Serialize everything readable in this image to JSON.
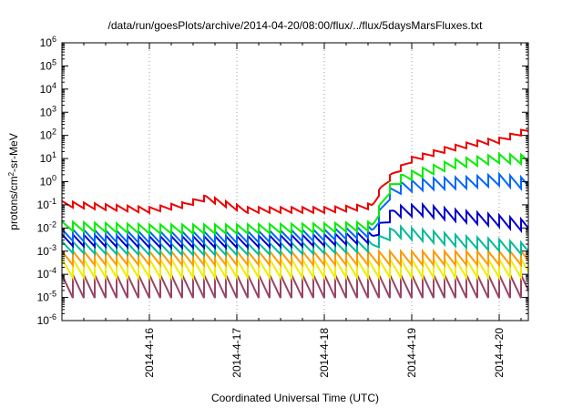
{
  "chart_data": {
    "type": "line",
    "title": "/data/run/goesPlots/archive/2014-04-20/08:00/flux/../flux/5daysMarsFluxes.txt",
    "xlabel": "Coordinated Universal Time (UTC)",
    "ylabel": {
      "base": "protons/cm",
      "sup": "2",
      "rest": "-sr-MeV"
    },
    "yscale": "log",
    "ylim_exp": [
      -6,
      6
    ],
    "xlim": [
      "2014-04-15 00:00",
      "2014-04-20 08:00"
    ],
    "x_ticks": [
      "2014-4-16",
      "2014-4-17",
      "2014-4-18",
      "2014-4-19",
      "2014-4-20"
    ],
    "y_ticks": [
      {
        "base": "10",
        "exp": "-6"
      },
      {
        "base": "10",
        "exp": "-5"
      },
      {
        "base": "10",
        "exp": "-4"
      },
      {
        "base": "10",
        "exp": "-3"
      },
      {
        "base": "10",
        "exp": "-2"
      },
      {
        "base": "10",
        "exp": "-1"
      },
      {
        "base": "10",
        "exp": "0"
      },
      {
        "base": "10",
        "exp": "1"
      },
      {
        "base": "10",
        "exp": "2"
      },
      {
        "base": "10",
        "exp": "3"
      },
      {
        "base": "10",
        "exp": "4"
      },
      {
        "base": "10",
        "exp": "5"
      },
      {
        "base": "10",
        "exp": "6"
      }
    ],
    "grid": true,
    "legend": "none",
    "sawtooth_period_days": 0.125,
    "series": [
      {
        "color": "#ee0000",
        "amplitude_decades": 0.25,
        "points": [
          [
            0.0,
            0.11
          ],
          [
            0.5,
            0.08
          ],
          [
            1.0,
            0.06
          ],
          [
            1.4,
            0.1
          ],
          [
            1.65,
            0.2
          ],
          [
            1.9,
            0.1
          ],
          [
            2.1,
            0.06
          ],
          [
            2.5,
            0.06
          ],
          [
            3.0,
            0.06
          ],
          [
            3.3,
            0.07
          ],
          [
            3.55,
            0.09
          ],
          [
            3.65,
            0.5
          ],
          [
            3.78,
            2
          ],
          [
            4.0,
            9
          ],
          [
            4.4,
            25
          ],
          [
            4.8,
            50
          ],
          [
            5.0,
            60
          ],
          [
            5.333,
            170
          ]
        ]
      },
      {
        "color": "#00ee00",
        "amplitude_decades": 0.4,
        "points": [
          [
            0.0,
            0.012
          ],
          [
            1.0,
            0.009
          ],
          [
            2.0,
            0.009
          ],
          [
            3.0,
            0.01
          ],
          [
            3.55,
            0.012
          ],
          [
            3.65,
            0.09
          ],
          [
            3.75,
            0.5
          ],
          [
            3.9,
            1.5
          ],
          [
            4.2,
            3
          ],
          [
            4.5,
            6
          ],
          [
            5.0,
            10
          ],
          [
            5.333,
            9
          ]
        ]
      },
      {
        "color": "#0066ff",
        "amplitude_decades": 0.5,
        "points": [
          [
            0.0,
            0.005
          ],
          [
            1.0,
            0.004
          ],
          [
            2.0,
            0.004
          ],
          [
            3.0,
            0.005
          ],
          [
            3.55,
            0.007
          ],
          [
            3.65,
            0.05
          ],
          [
            3.75,
            0.3
          ],
          [
            3.9,
            0.6
          ],
          [
            4.2,
            0.8
          ],
          [
            4.6,
            0.9
          ],
          [
            5.0,
            1.2
          ],
          [
            5.333,
            0.8
          ]
        ]
      },
      {
        "color": "#0000cc",
        "amplitude_decades": 0.5,
        "points": [
          [
            0.0,
            0.003
          ],
          [
            1.0,
            0.0025
          ],
          [
            2.0,
            0.0025
          ],
          [
            3.0,
            0.003
          ],
          [
            3.55,
            0.004
          ],
          [
            3.65,
            0.012
          ],
          [
            3.8,
            0.05
          ],
          [
            4.1,
            0.06
          ],
          [
            4.5,
            0.035
          ],
          [
            5.0,
            0.02
          ],
          [
            5.333,
            0.012
          ]
        ]
      },
      {
        "color": "#00bb99",
        "amplitude_decades": 0.5,
        "points": [
          [
            0.0,
            0.0015
          ],
          [
            1.0,
            0.0012
          ],
          [
            2.0,
            0.0012
          ],
          [
            3.0,
            0.0014
          ],
          [
            3.55,
            0.0017
          ],
          [
            3.65,
            0.003
          ],
          [
            3.8,
            0.007
          ],
          [
            4.1,
            0.005
          ],
          [
            4.6,
            0.0025
          ],
          [
            5.0,
            0.0018
          ],
          [
            5.333,
            0.0012
          ]
        ]
      },
      {
        "color": "#ff9900",
        "amplitude_decades": 0.6,
        "points": [
          [
            0.0,
            0.0005
          ],
          [
            2.5,
            0.0005
          ],
          [
            5.333,
            0.0005
          ]
        ]
      },
      {
        "color": "#eeee00",
        "amplitude_decades": 0.8,
        "points": [
          [
            0.0,
            0.00018
          ],
          [
            2.5,
            0.00018
          ],
          [
            5.333,
            0.00018
          ]
        ]
      },
      {
        "color": "#994466",
        "amplitude_decades": 1.0,
        "points": [
          [
            0.0,
            3e-05
          ],
          [
            2.5,
            3e-05
          ],
          [
            5.333,
            3e-05
          ]
        ]
      }
    ]
  }
}
